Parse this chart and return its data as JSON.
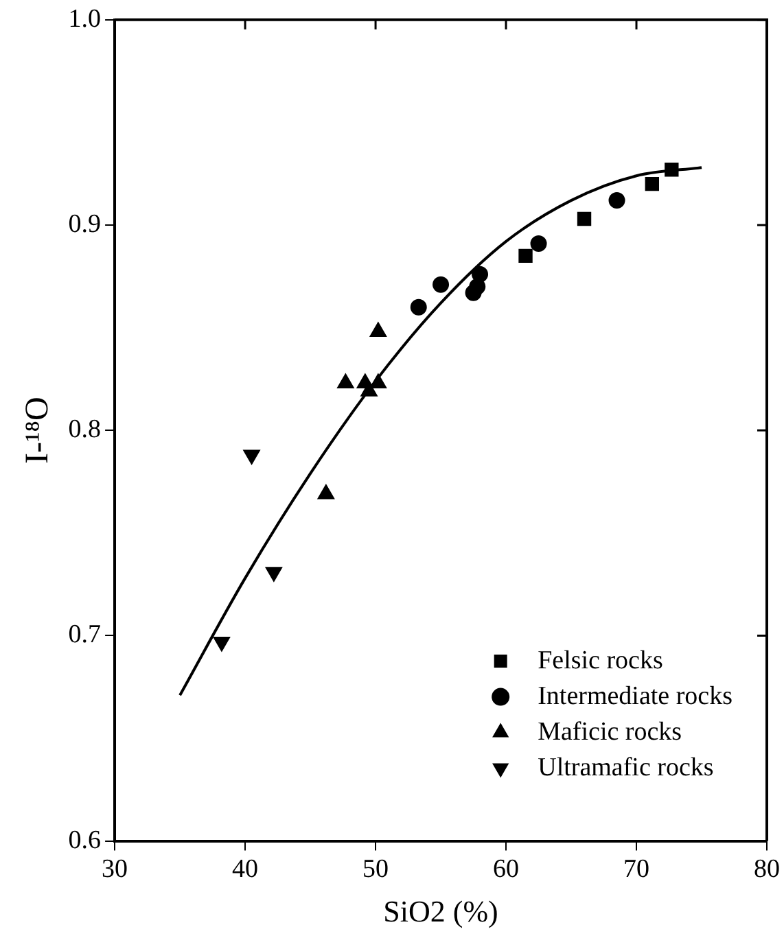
{
  "chart_data": {
    "type": "scatter",
    "xlabel": "SiO2 (%)",
    "ylabel": "I-¹⁸O",
    "xlim": [
      30,
      80
    ],
    "xticks": [
      30,
      40,
      50,
      60,
      70,
      80
    ],
    "ylim": [
      0.6,
      1.0
    ],
    "yticks": [
      0.6,
      0.7,
      0.8,
      0.9,
      {
        "value": 1,
        "label": "1.0"
      }
    ],
    "grid": false,
    "legend": "bottom right",
    "series": [
      {
        "name": "Felsic rocks",
        "color": "#000000",
        "marker": "square",
        "x": [
          61.5,
          66,
          71.2,
          72.7
        ],
        "values": [
          0.885,
          0.903,
          0.92,
          0.927
        ]
      },
      {
        "name": "Intermediate rocks",
        "color": "#000000",
        "marker": "circle",
        "x": [
          53.3,
          55,
          57.5,
          57.8,
          58,
          62.5,
          68.5
        ],
        "values": [
          0.86,
          0.871,
          0.867,
          0.87,
          0.876,
          0.891,
          0.912
        ]
      },
      {
        "name": "Maficic rocks",
        "color": "#000000",
        "marker": "triangle",
        "x": [
          46.2,
          47.7,
          49.2,
          49.5,
          50.2,
          50.2
        ],
        "values": [
          0.769,
          0.823,
          0.823,
          0.819,
          0.823,
          0.848
        ]
      },
      {
        "name": "Ultramafic rocks",
        "color": "#000000",
        "marker": "triangle-down",
        "x": [
          38.2,
          40.5,
          42.2
        ],
        "values": [
          0.697,
          0.788,
          0.731
        ]
      },
      {
        "type": "line",
        "color": "#000000",
        "marker": "none",
        "line_style": "solid",
        "x": [
          35,
          40,
          45,
          50,
          55,
          60,
          65,
          70,
          75
        ],
        "values": [
          0.671,
          0.728,
          0.779,
          0.824,
          0.862,
          0.892,
          0.912,
          0.924,
          0.928
        ]
      }
    ]
  }
}
